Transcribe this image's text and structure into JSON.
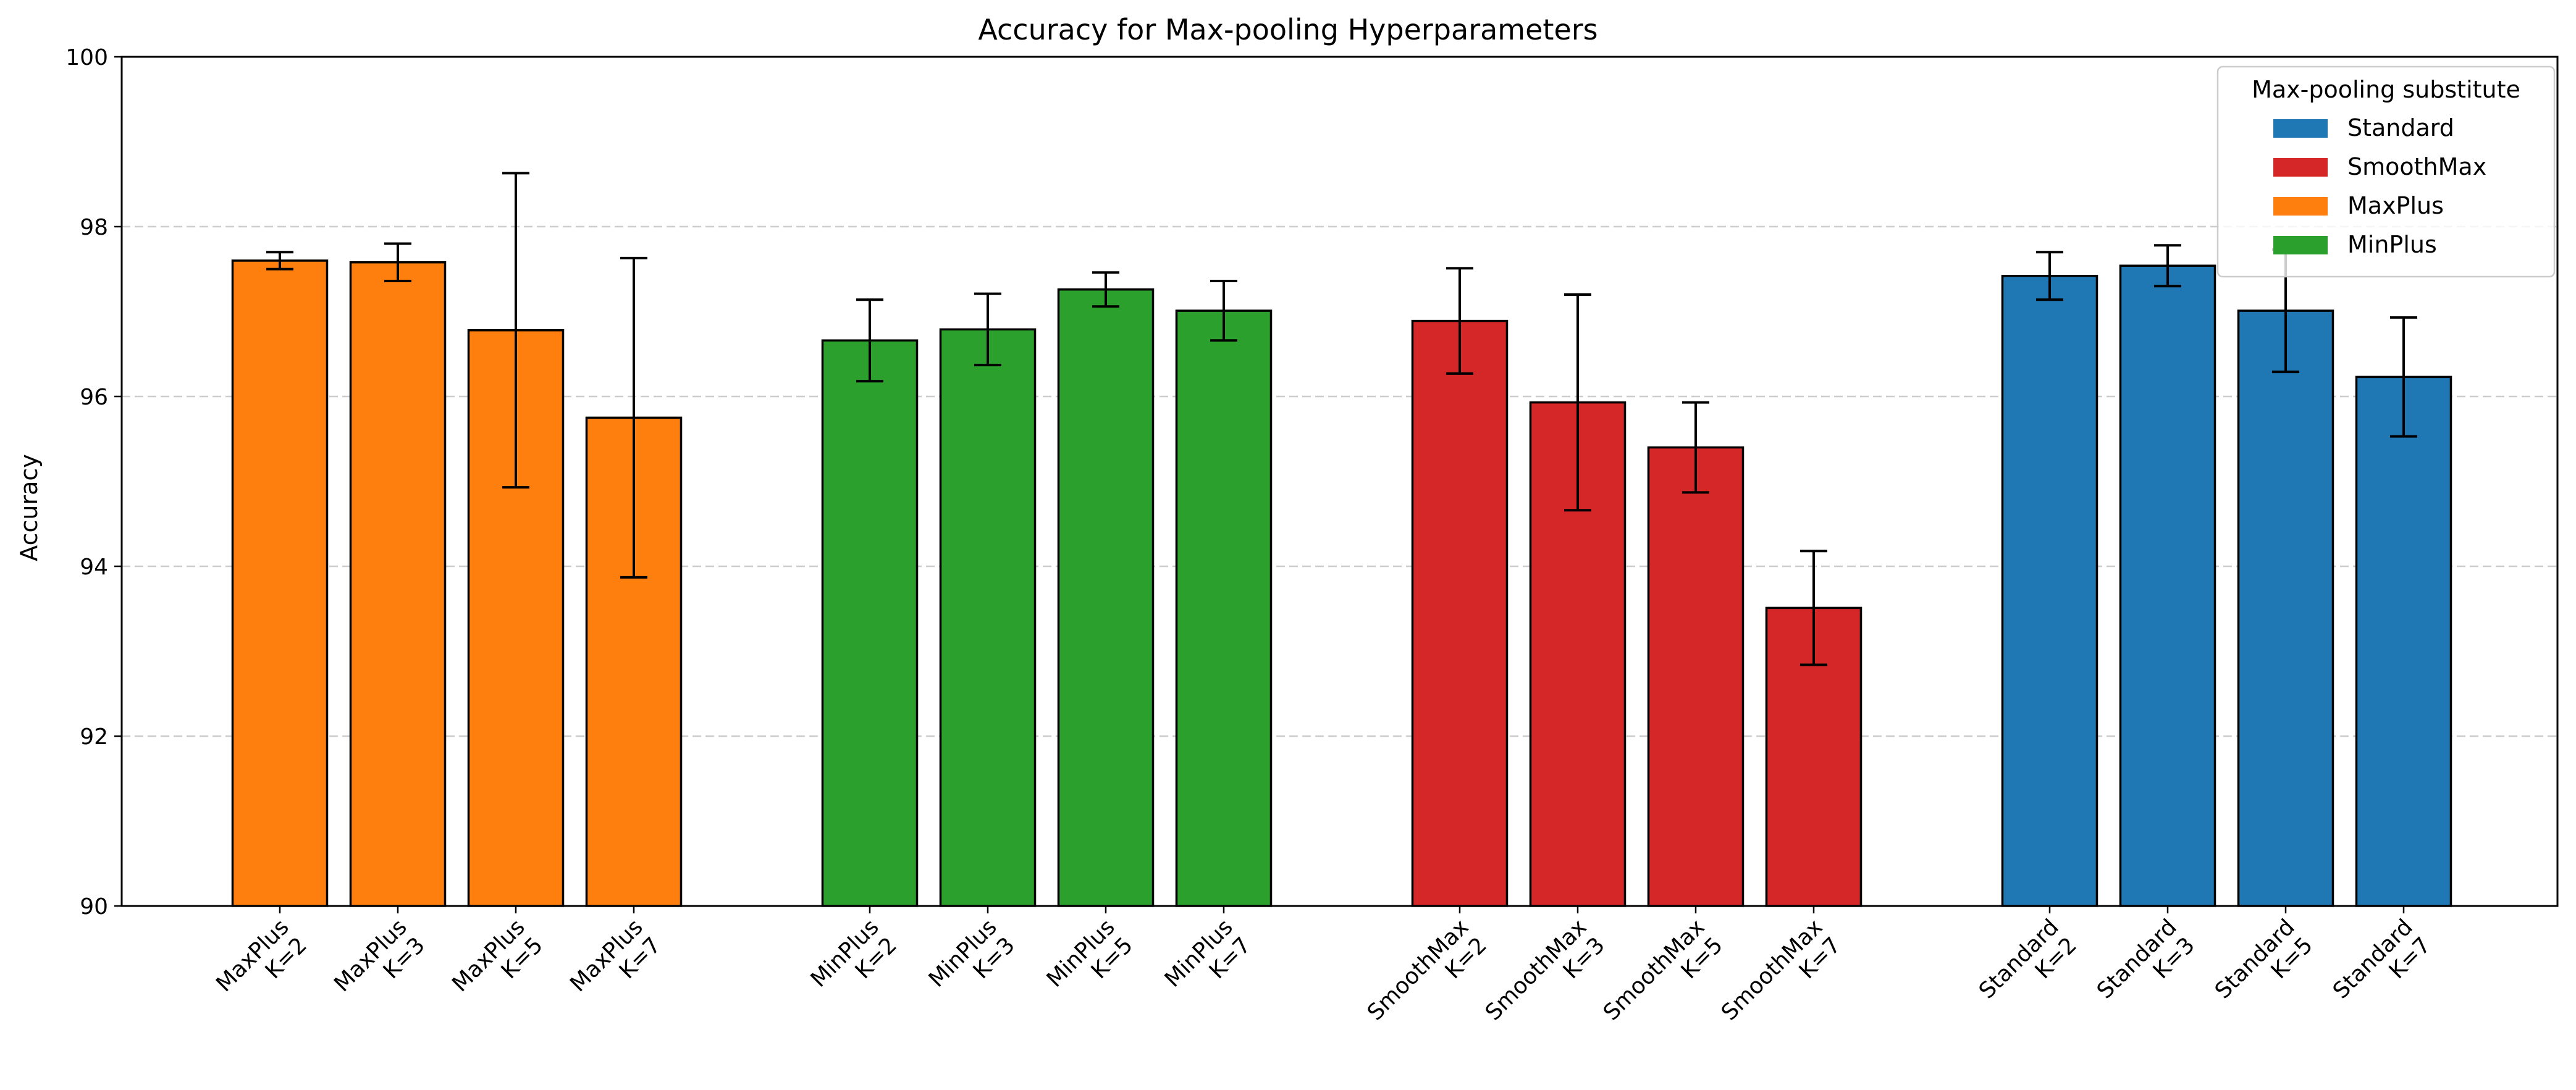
{
  "chart_data": {
    "type": "bar",
    "title": "Accuracy for Max-pooling Hyperparameters",
    "xlabel": "",
    "ylabel": "Accuracy",
    "ylim": [
      90,
      100
    ],
    "yticks": [
      90,
      92,
      94,
      96,
      98,
      100
    ],
    "grid": "horizontal dashed",
    "legend": {
      "title": "Max-pooling substitute",
      "placement": "top-right",
      "entries": [
        {
          "name": "Standard",
          "color": "#1f77b4"
        },
        {
          "name": "SmoothMax",
          "color": "#d62728"
        },
        {
          "name": "MaxPlus",
          "color": "#ff7f0e"
        },
        {
          "name": "MinPlus",
          "color": "#2ca02c"
        }
      ]
    },
    "groups": [
      {
        "name": "MaxPlus",
        "color": "#ff7f0e",
        "bars": [
          {
            "line1": "MaxPlus",
            "line2": "K=2",
            "value": 97.6,
            "error": 0.1
          },
          {
            "line1": "MaxPlus",
            "line2": "K=3",
            "value": 97.58,
            "error": 0.22
          },
          {
            "line1": "MaxPlus",
            "line2": "K=5",
            "value": 96.78,
            "error": 1.85
          },
          {
            "line1": "MaxPlus",
            "line2": "K=7",
            "value": 95.75,
            "error": 1.88
          }
        ]
      },
      {
        "name": "MinPlus",
        "color": "#2ca02c",
        "bars": [
          {
            "line1": "MinPlus",
            "line2": "K=2",
            "value": 96.66,
            "error": 0.48
          },
          {
            "line1": "MinPlus",
            "line2": "K=3",
            "value": 96.79,
            "error": 0.42
          },
          {
            "line1": "MinPlus",
            "line2": "K=5",
            "value": 97.26,
            "error": 0.2
          },
          {
            "line1": "MinPlus",
            "line2": "K=7",
            "value": 97.01,
            "error": 0.35
          }
        ]
      },
      {
        "name": "SmoothMax",
        "color": "#d62728",
        "bars": [
          {
            "line1": "SmoothMax",
            "line2": "K=2",
            "value": 96.89,
            "error": 0.62
          },
          {
            "line1": "SmoothMax",
            "line2": "K=3",
            "value": 95.93,
            "error": 1.27
          },
          {
            "line1": "SmoothMax",
            "line2": "K=5",
            "value": 95.4,
            "error": 0.53
          },
          {
            "line1": "SmoothMax",
            "line2": "K=7",
            "value": 93.51,
            "error": 0.67
          }
        ]
      },
      {
        "name": "Standard",
        "color": "#1f77b4",
        "bars": [
          {
            "line1": "Standard",
            "line2": "K=2",
            "value": 97.42,
            "error": 0.28
          },
          {
            "line1": "Standard",
            "line2": "K=3",
            "value": 97.54,
            "error": 0.24
          },
          {
            "line1": "Standard",
            "line2": "K=5",
            "value": 97.01,
            "error": 0.72
          },
          {
            "line1": "Standard",
            "line2": "K=7",
            "value": 96.23,
            "error": 0.7
          }
        ]
      }
    ]
  }
}
